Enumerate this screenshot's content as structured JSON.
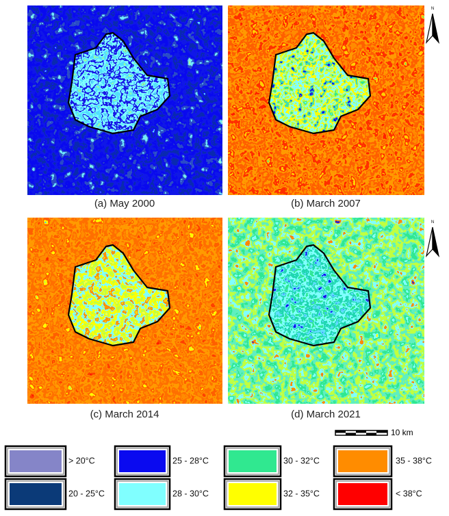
{
  "panels": [
    {
      "caption": "(a) May 2000"
    },
    {
      "caption": "(b) March 2007"
    },
    {
      "caption": "(c) March 2014"
    },
    {
      "caption": "(d) March 2021"
    }
  ],
  "north_label": "N",
  "scale_label": "10 km",
  "legend": [
    {
      "label": "> 20°C",
      "color": "#8585c8"
    },
    {
      "label": "20 - 25°C",
      "color": "#0b3a78"
    },
    {
      "label": "25 - 28°C",
      "color": "#0a0af0"
    },
    {
      "label": "28 - 30°C",
      "color": "#80ffff"
    },
    {
      "label": "30 - 32°C",
      "color": "#30e890"
    },
    {
      "label": "32 - 35°C",
      "color": "#ffff00"
    },
    {
      "label": "35 - 38°C",
      "color": "#ff8c00"
    },
    {
      "label": "< 38°C",
      "color": "#ff0000"
    }
  ]
}
